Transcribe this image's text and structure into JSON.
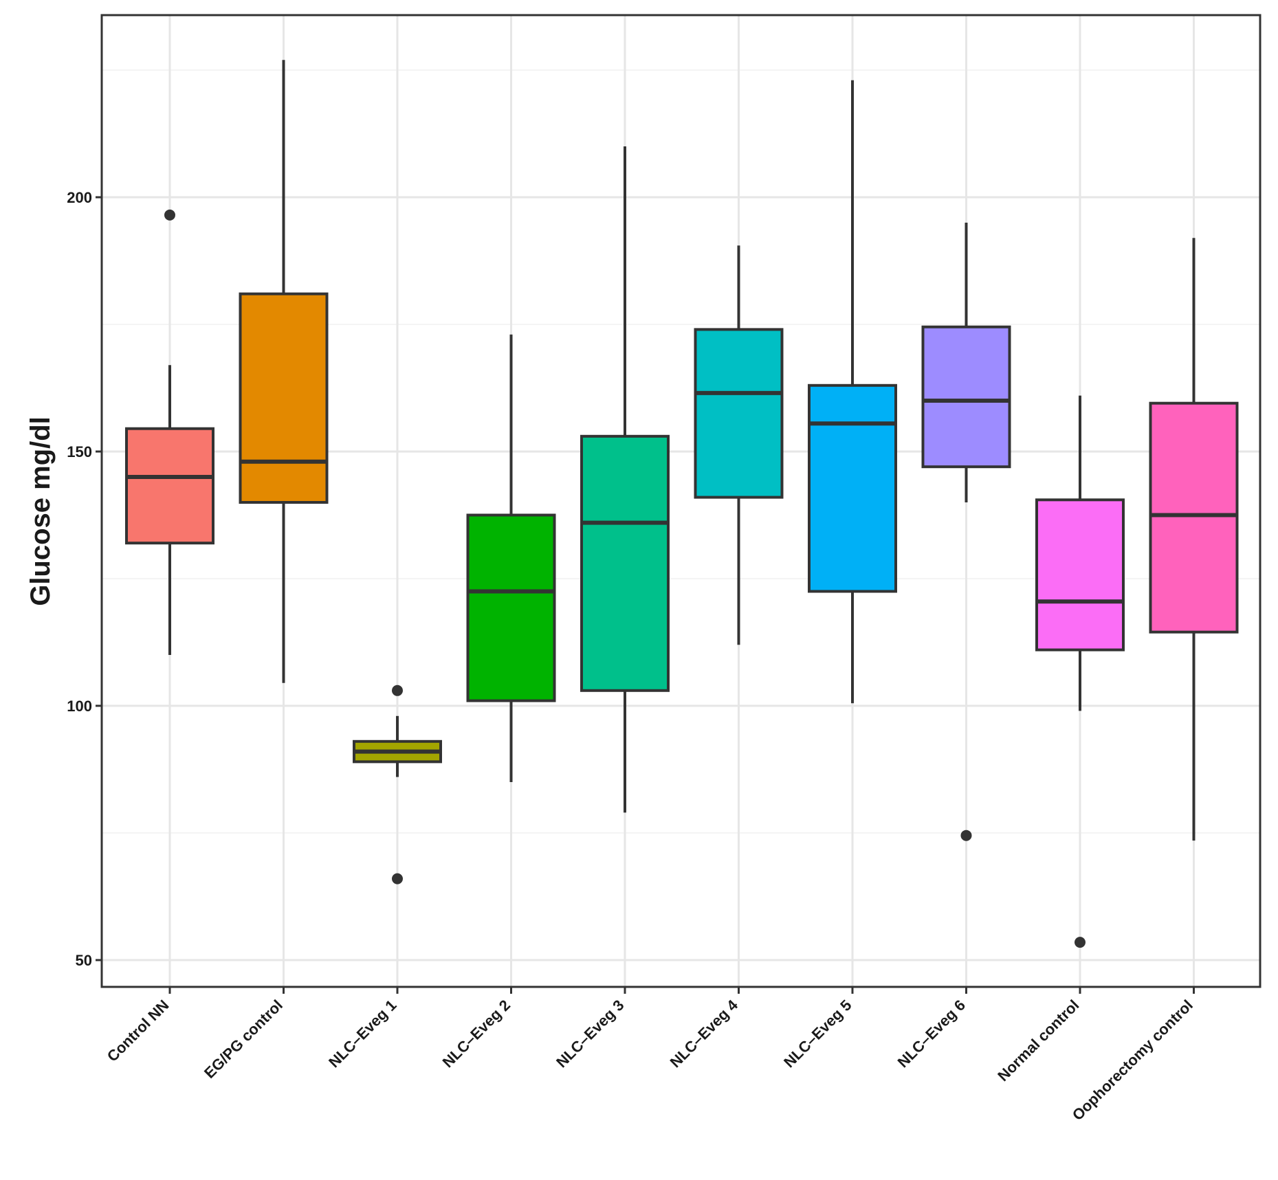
{
  "chart_data": {
    "type": "boxplot",
    "title": "",
    "xlabel": "",
    "ylabel": "Glucose mg/dl",
    "ylim": [
      44.5,
      236
    ],
    "yticks": [
      50,
      100,
      150,
      200
    ],
    "ytick_labels": [
      "50",
      "100",
      "150",
      "200"
    ],
    "y_minor_gridlines": [
      75,
      125,
      175,
      225
    ],
    "grid": true,
    "legend": "none",
    "groups": [
      {
        "label": "Control NN",
        "color": "#F8766D",
        "whisker_low": 110,
        "q1": 132,
        "median": 145,
        "q3": 154.5,
        "whisker_high": 167,
        "outliers": [
          196.5
        ]
      },
      {
        "label": "EG/PG control",
        "color": "#E38900",
        "whisker_low": 104.5,
        "q1": 140,
        "median": 148,
        "q3": 181,
        "whisker_high": 227,
        "outliers": []
      },
      {
        "label": "NLC–Eveg 1",
        "color": "#A3A500",
        "whisker_low": 86,
        "q1": 89,
        "median": 91,
        "q3": 93,
        "whisker_high": 98,
        "outliers": [
          103,
          66
        ]
      },
      {
        "label": "NLC–Eveg 2",
        "color": "#00B300",
        "whisker_low": 85,
        "q1": 101,
        "median": 122.5,
        "q3": 137.5,
        "whisker_high": 173,
        "outliers": []
      },
      {
        "label": "NLC–Eveg 3",
        "color": "#00C08B",
        "whisker_low": 79,
        "q1": 103,
        "median": 136,
        "q3": 153,
        "whisker_high": 210,
        "outliers": []
      },
      {
        "label": "NLC–Eveg 4",
        "color": "#00BFC4",
        "whisker_low": 112,
        "q1": 141,
        "median": 161.5,
        "q3": 174,
        "whisker_high": 190.5,
        "outliers": []
      },
      {
        "label": "NLC–Eveg 5",
        "color": "#00B0F6",
        "whisker_low": 100.5,
        "q1": 122.5,
        "median": 155.5,
        "q3": 163,
        "whisker_high": 223,
        "outliers": []
      },
      {
        "label": "NLC–Eveg 6",
        "color": "#9D8CFF",
        "whisker_low": 140,
        "q1": 147,
        "median": 160,
        "q3": 174.5,
        "whisker_high": 195,
        "outliers": [
          74.5
        ]
      },
      {
        "label": "Normal control",
        "color": "#FB6DF6",
        "whisker_low": 99,
        "q1": 111,
        "median": 120.5,
        "q3": 140.5,
        "whisker_high": 161,
        "outliers": [
          53.5
        ]
      },
      {
        "label": "Oophorectomy control",
        "color": "#FF62BC",
        "whisker_low": 73.5,
        "q1": 114.5,
        "median": 137.5,
        "q3": 159.5,
        "whisker_high": 192,
        "outliers": []
      }
    ]
  }
}
